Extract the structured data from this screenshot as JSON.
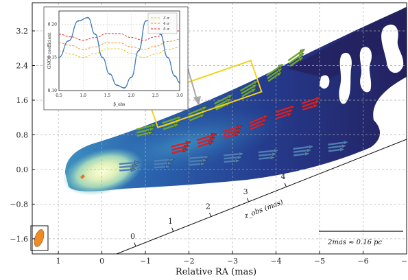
{
  "chart_data": [
    {
      "type": "scatter",
      "subtype": "jet-image-with-velocity-vectors",
      "xlabel": "Relative RA (mas)",
      "ylabel": "",
      "xlim": [
        1.6,
        -7.0
      ],
      "ylim": [
        -1.95,
        3.85
      ],
      "x_ticks": [
        1,
        0,
        -1,
        -2,
        -3,
        -4,
        -5,
        -6,
        -7
      ],
      "x_tick_labels": [
        "1",
        "0",
        "−1",
        "−2",
        "−3",
        "−4",
        "−5",
        "−6",
        "−7"
      ],
      "y_ticks": [
        3.2,
        2.4,
        1.6,
        0.8,
        0.0,
        -0.8,
        -1.6
      ],
      "y_tick_labels": [
        "3.2",
        "2.4",
        "1.6",
        "0.8",
        "0.0",
        "−0.8",
        "−1.6"
      ],
      "grid": true,
      "colormap": [
        "#24205e",
        "#253a8c",
        "#2a62ad",
        "#3d8fc0",
        "#66b8c2",
        "#a2d6bb",
        "#e1f0bb",
        "#fcffd6"
      ],
      "series": [
        {
          "color": "#6ea632",
          "x": [
            -0.8,
            -1.4,
            -2.0,
            -2.6,
            -3.2,
            -3.8,
            -4.3
          ],
          "y": [
            0.85,
            1.0,
            1.2,
            1.45,
            1.75,
            2.1,
            2.45
          ]
        },
        {
          "color": "#d62027",
          "x": [
            -1.6,
            -2.2,
            -2.8,
            -3.4,
            -4.0,
            -4.6
          ],
          "y": [
            0.45,
            0.6,
            0.8,
            1.0,
            1.25,
            1.45
          ]
        },
        {
          "color": "#4f7fb5",
          "x": [
            -0.4,
            -1.2,
            -2.0,
            -2.8,
            -3.6,
            -4.4,
            -5.2
          ],
          "y": [
            0.05,
            0.12,
            0.18,
            0.25,
            0.32,
            0.4,
            0.5
          ]
        }
      ],
      "annotations": {
        "axis_label": "z_obs (mas)",
        "axis_ticks": [
          "0",
          "1",
          "2",
          "3",
          "4"
        ],
        "scale_bar": "2mas ≈ 0.16 pc",
        "highlight_box": "yellow"
      }
    },
    {
      "type": "line",
      "xlabel": "β_obs",
      "ylabel": "GNCC coefficient",
      "xlim": [
        0.5,
        3.0
      ],
      "ylim": [
        0.1,
        0.22
      ],
      "x_ticks": [
        0.5,
        1.0,
        1.5,
        2.0,
        2.5,
        3.0
      ],
      "x_tick_labels": [
        "0.5",
        "1.0",
        "1.5",
        "2.0",
        "2.5",
        "3.0"
      ],
      "y_ticks": [
        0.1,
        0.15,
        0.2
      ],
      "y_tick_labels": [
        "0.10",
        "0.15",
        "0.20"
      ],
      "legend": "top-right",
      "series": [
        {
          "name": "3 σ",
          "color": "#e3c21a",
          "dash": "dashed",
          "x": [
            0.5,
            0.75,
            1.0,
            1.25,
            1.5,
            1.75,
            2.0,
            2.25,
            2.5,
            2.75,
            3.0
          ],
          "y": [
            0.16,
            0.155,
            0.15,
            0.156,
            0.163,
            0.163,
            0.156,
            0.15,
            0.155,
            0.162,
            0.165
          ]
        },
        {
          "name": "4 σ",
          "color": "#f08a24",
          "dash": "dashed",
          "x": [
            0.5,
            0.75,
            1.0,
            1.25,
            1.5,
            1.75,
            2.0,
            2.25,
            2.5,
            2.75,
            3.0
          ],
          "y": [
            0.172,
            0.168,
            0.162,
            0.166,
            0.172,
            0.172,
            0.166,
            0.162,
            0.167,
            0.174,
            0.177
          ]
        },
        {
          "name": "5 σ",
          "color": "#d8262b",
          "dash": "dashed",
          "x": [
            0.5,
            0.75,
            1.0,
            1.25,
            1.5,
            1.75,
            2.0,
            2.25,
            2.5,
            2.75,
            3.0
          ],
          "y": [
            0.185,
            0.181,
            0.176,
            0.18,
            0.186,
            0.186,
            0.18,
            0.176,
            0.181,
            0.188,
            0.19
          ]
        },
        {
          "color": "#3a77b8",
          "dash": "solid",
          "x": [
            0.5,
            0.7,
            0.9,
            1.1,
            1.25,
            1.4,
            1.55,
            1.7,
            1.85,
            2.0,
            2.15,
            2.3,
            2.45,
            2.6,
            2.75,
            2.9,
            3.0
          ],
          "y": [
            0.15,
            0.175,
            0.205,
            0.21,
            0.185,
            0.15,
            0.125,
            0.108,
            0.104,
            0.12,
            0.16,
            0.205,
            0.208,
            0.185,
            0.15,
            0.122,
            0.112
          ]
        }
      ]
    }
  ]
}
